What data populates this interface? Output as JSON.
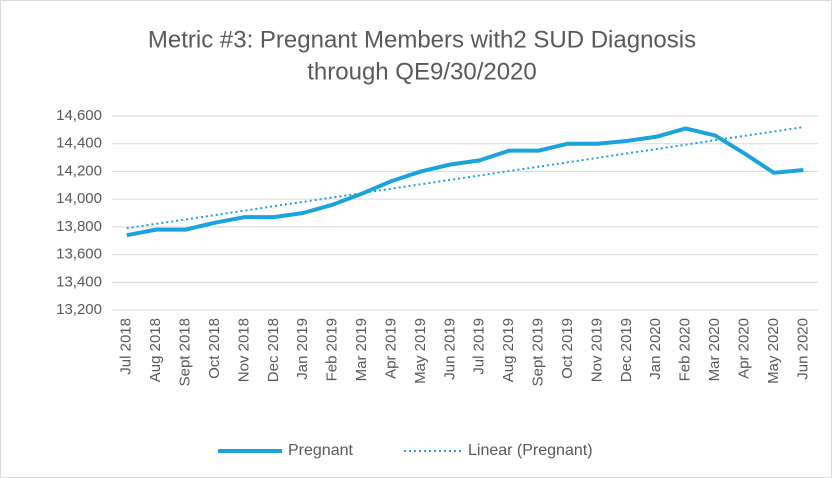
{
  "chart_data": {
    "type": "line",
    "title": [
      "Metric #3: Pregnant Members with2 SUD Diagnosis",
      "through QE9/30/2020"
    ],
    "categories": [
      "Jul 2018",
      "Aug 2018",
      "Sept 2018",
      "Oct 2018",
      "Nov 2018",
      "Dec 2018",
      "Jan 2019",
      "Feb 2019",
      "Mar 2019",
      "Apr 2019",
      "May 2019",
      "Jun 2019",
      "Jul 2019",
      "Aug 2019",
      "Sept 2019",
      "Oct 2019",
      "Nov 2019",
      "Dec 2019",
      "Jan 2020",
      "Feb 2020",
      "Mar 2020",
      "Apr 2020",
      "May 2020",
      "Jun 2020"
    ],
    "series": [
      {
        "name": "Pregnant",
        "color": "#1aa3dc",
        "style": "solid",
        "values": [
          13740,
          13780,
          13780,
          13830,
          13870,
          13870,
          13900,
          13960,
          14040,
          14130,
          14200,
          14250,
          14280,
          14350,
          14350,
          14400,
          14400,
          14420,
          14450,
          14510,
          14460,
          14330,
          14190,
          14210
        ]
      },
      {
        "name": "Linear (Pregnant)",
        "color": "#1aa3dc",
        "style": "dotted",
        "values": [
          13790,
          13822,
          13853,
          13885,
          13917,
          13949,
          13980,
          14012,
          14044,
          14076,
          14107,
          14139,
          14171,
          14203,
          14234,
          14266,
          14298,
          14330,
          14361,
          14393,
          14425,
          14457,
          14488,
          14520
        ]
      }
    ],
    "ylim": [
      13200,
      14600
    ],
    "yticks": [
      {
        "value": 13200,
        "label": "13,200"
      },
      {
        "value": 13400,
        "label": "13,400"
      },
      {
        "value": 13600,
        "label": "13,600"
      },
      {
        "value": 13800,
        "label": "13,800"
      },
      {
        "value": 14000,
        "label": "14,000"
      },
      {
        "value": 14200,
        "label": "14,200"
      },
      {
        "value": 14400,
        "label": "14,400"
      },
      {
        "value": 14600,
        "label": "14,600"
      }
    ],
    "grid": true,
    "legend": "bottom"
  }
}
